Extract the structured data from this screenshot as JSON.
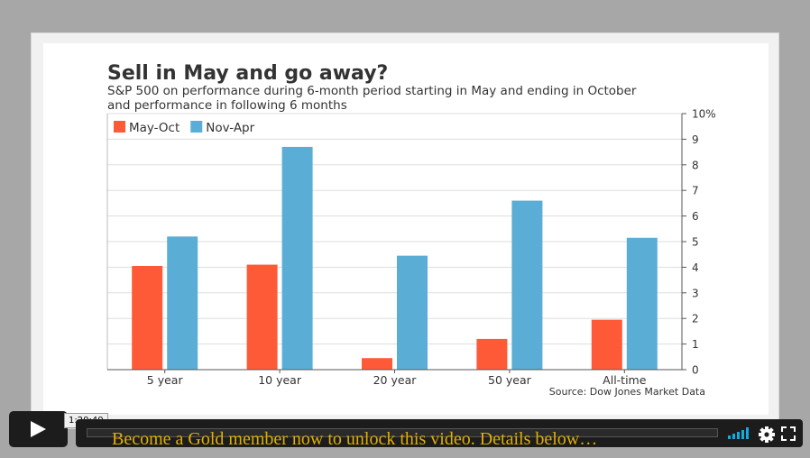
{
  "chart_data": {
    "type": "bar",
    "title": "Sell in May and go away?",
    "subtitle": [
      "S&P 500 on performance during 6-month period starting in May and ending in October",
      "and performance in following 6 months"
    ],
    "categories": [
      "5 year",
      "10 year",
      "20 year",
      "50 year",
      "All-time"
    ],
    "series": [
      {
        "name": "May-Oct",
        "color": "#fe5a38",
        "values": [
          4.05,
          4.1,
          0.45,
          1.2,
          1.95
        ]
      },
      {
        "name": "Nov-Apr",
        "color": "#5aaed6",
        "values": [
          5.2,
          8.7,
          4.45,
          6.6,
          5.15
        ]
      }
    ],
    "ylim": [
      0,
      10
    ],
    "yticks": [
      "0",
      "1",
      "2",
      "3",
      "4",
      "5",
      "6",
      "7",
      "8",
      "9",
      "10%"
    ],
    "y_axis_side": "right",
    "grid": true,
    "legend_position": "top-left",
    "source": "Source: Dow Jones Market Data"
  },
  "player": {
    "timecode": "1:20:40",
    "progress": 0,
    "promo_text": "Become a Gold member now to unlock this video. Details below…"
  }
}
